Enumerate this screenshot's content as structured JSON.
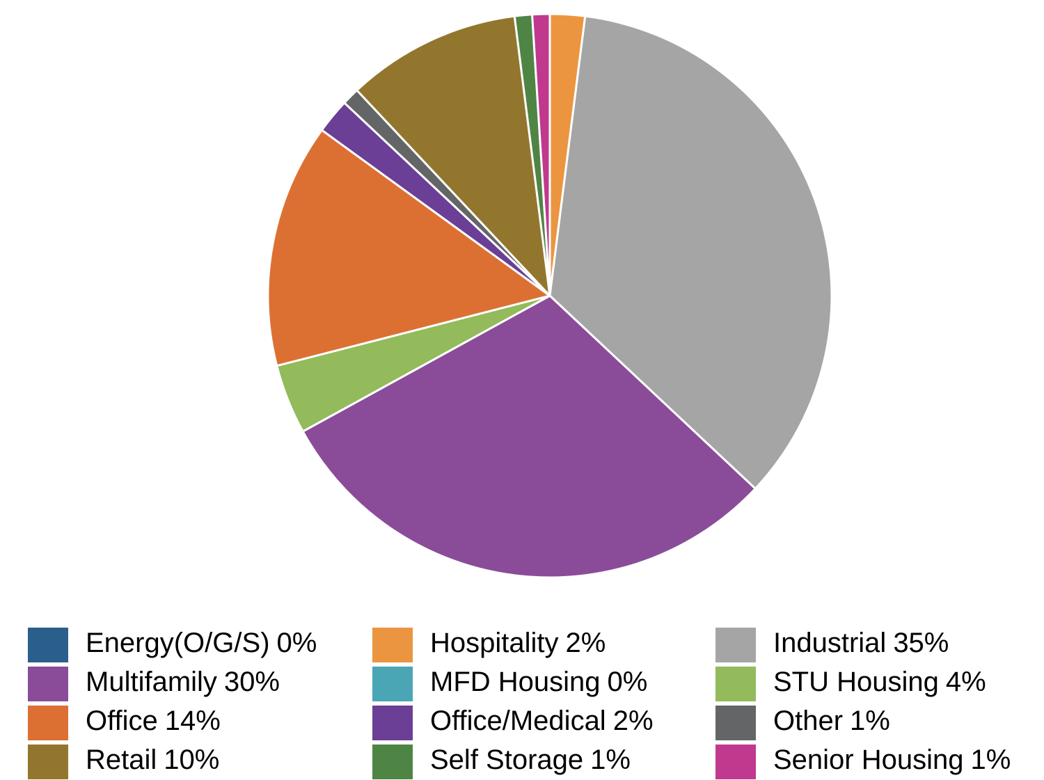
{
  "chart_data": {
    "type": "pie",
    "categories": [
      "Energy(O/G/S)",
      "Hospitality",
      "Industrial",
      "Multifamily",
      "MFD Housing",
      "STU Housing",
      "Office",
      "Office/Medical",
      "Other",
      "Retail",
      "Self Storage",
      "Senior Housing"
    ],
    "values": [
      0,
      2,
      35,
      30,
      0,
      4,
      14,
      2,
      1,
      10,
      1,
      1
    ],
    "value_labels": [
      "0%",
      "2%",
      "35%",
      "30%",
      "0%",
      "4%",
      "14%",
      "2%",
      "1%",
      "10%",
      "1%",
      "1%"
    ],
    "colors": [
      "#2a5f8c",
      "#ec9540",
      "#a5a5a5",
      "#8a4c99",
      "#4aa6b5",
      "#93ba5b",
      "#dc7033",
      "#6a3f95",
      "#636567",
      "#93762e",
      "#4e8545",
      "#c0398e"
    ],
    "legend": "bottom"
  }
}
